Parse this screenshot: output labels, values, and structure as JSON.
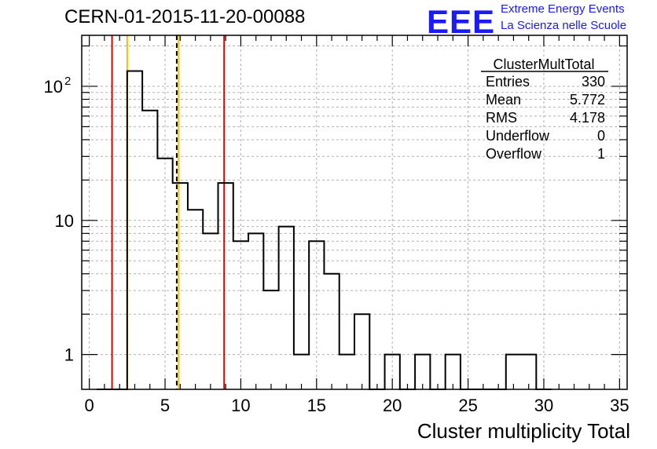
{
  "header": {
    "title": "CERN-01-2015-11-20-00088",
    "logo_text": "EEE",
    "logo_line1": "Extreme Energy Events",
    "logo_line2": "La Scienza nelle Scuole"
  },
  "stats_box": {
    "title": "ClusterMultTotal",
    "rows": [
      {
        "label": "Entries",
        "value": "330"
      },
      {
        "label": "Mean",
        "value": "5.772"
      },
      {
        "label": "RMS",
        "value": "4.178"
      },
      {
        "label": "Underflow",
        "value": "0"
      },
      {
        "label": "Overflow",
        "value": "1"
      }
    ]
  },
  "chart_data": {
    "type": "histogram",
    "title": "CERN-01-2015-11-20-00088",
    "xlabel": "Cluster multiplicity Total",
    "ylabel": "",
    "xlim": [
      -0.5,
      35.5
    ],
    "ylim": [
      0.55,
      240
    ],
    "ylog": true,
    "grid": true,
    "xticks": [
      0,
      5,
      10,
      15,
      20,
      25,
      30,
      35
    ],
    "yticks": [
      {
        "value": 1,
        "label": "1"
      },
      {
        "value": 10,
        "label": "10"
      },
      {
        "value": 100,
        "label": "10",
        "sup": "2"
      }
    ],
    "bin_width": 1,
    "bin_centers": [
      1,
      2,
      3,
      4,
      5,
      6,
      7,
      8,
      9,
      10,
      11,
      12,
      13,
      14,
      15,
      16,
      17,
      18,
      19,
      20,
      21,
      22,
      23,
      24,
      25,
      26,
      27,
      28,
      29,
      30
    ],
    "values": [
      0,
      0,
      130,
      66,
      29,
      19,
      12,
      8,
      19,
      7,
      8,
      3,
      9,
      1,
      7,
      4,
      1,
      2,
      0,
      1,
      0,
      1,
      0,
      1,
      0,
      0,
      0,
      1,
      1,
      0
    ],
    "vertical_lines": [
      {
        "x": 1.5,
        "color": "#e00000",
        "style": "solid"
      },
      {
        "x": 2.5,
        "color": "#f0c000",
        "style": "solid"
      },
      {
        "x": 5.772,
        "color": "#000000",
        "style": "dashed"
      },
      {
        "x": 5.9,
        "color": "#f0c000",
        "style": "solid"
      },
      {
        "x": 8.9,
        "color": "#e00000",
        "style": "solid"
      }
    ],
    "colors": {
      "histogram": "#000000",
      "grid": "#b0b0b0"
    }
  }
}
